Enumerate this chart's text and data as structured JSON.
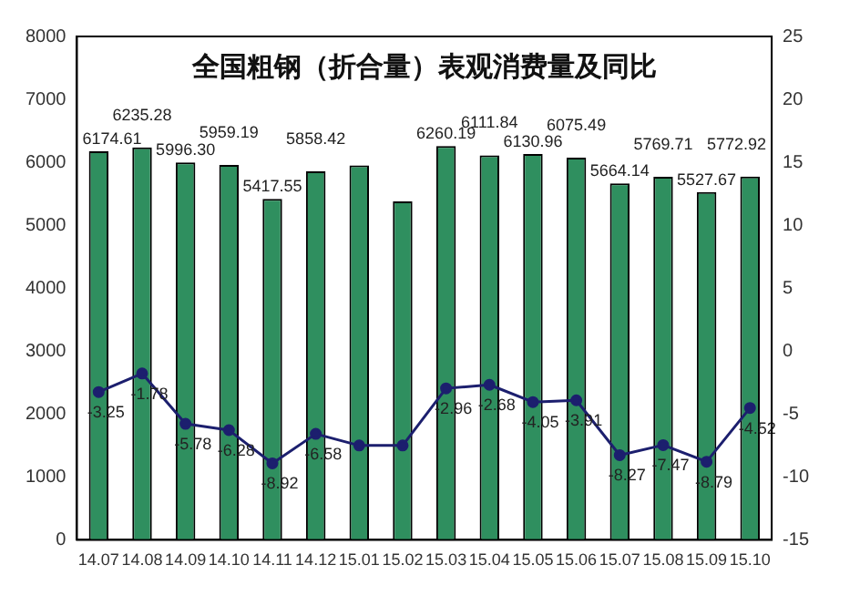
{
  "chart_data": {
    "type": "bar",
    "title": "全国粗钢（折合量）表观消费量及同比",
    "categories": [
      "14.07",
      "14.08",
      "14.09",
      "14.10",
      "14.11",
      "14.12",
      "15.01",
      "15.02",
      "15.03",
      "15.04",
      "15.05",
      "15.06",
      "15.07",
      "15.08",
      "15.09",
      "15.10"
    ],
    "series": [
      {
        "color": "#2f8f5f",
        "values": [
          6174.61,
          6235.28,
          5996.3,
          5959.19,
          5417.55,
          5858.42,
          5950,
          5380,
          6260.19,
          6111.84,
          6130.96,
          6075.49,
          5664.14,
          5769.71,
          5527.67,
          5772.92
        ],
        "value_labels": [
          "6174.61",
          "6235.28",
          "5996.30",
          "5959.19",
          "5417.55",
          "5858.42",
          null,
          null,
          "6260.19",
          "6111.84",
          "6130.96",
          "6075.49",
          "5664.14",
          "5769.71",
          "5527.67",
          "5772.92"
        ]
      },
      {
        "type": "line",
        "axis": "y2",
        "color": "#1c1f6e",
        "values": [
          -3.25,
          -1.78,
          -5.78,
          -6.28,
          -8.92,
          -6.58,
          -7.5,
          -7.5,
          -2.96,
          -2.68,
          -4.05,
          -3.91,
          -8.27,
          -7.47,
          -8.79,
          -4.52
        ],
        "value_labels": [
          "-3.25",
          "-1.78",
          "-5.78",
          "-6.28",
          "-8.92",
          "-6.58",
          null,
          null,
          "-2.96",
          "-2.68",
          "-4.05",
          "-3.91",
          "-8.27",
          "-7.47",
          "-8.79",
          "-4.52"
        ]
      }
    ],
    "ylim": [
      0,
      8000
    ],
    "yticks": [
      0,
      1000,
      2000,
      3000,
      4000,
      5000,
      6000,
      7000,
      8000
    ],
    "y2lim": [
      -15,
      25
    ],
    "y2ticks": [
      -15,
      -10,
      -5,
      0,
      5,
      10,
      15,
      20,
      25
    ],
    "grid": false,
    "legend": false,
    "marker": "circle",
    "line_style": "solid"
  }
}
